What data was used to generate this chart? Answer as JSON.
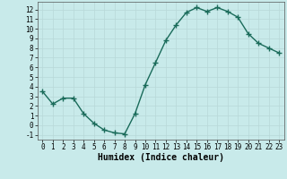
{
  "x": [
    0,
    1,
    2,
    3,
    4,
    5,
    6,
    7,
    8,
    9,
    10,
    11,
    12,
    13,
    14,
    15,
    16,
    17,
    18,
    19,
    20,
    21,
    22,
    23
  ],
  "y": [
    3.5,
    2.2,
    2.8,
    2.8,
    1.2,
    0.2,
    -0.5,
    -0.8,
    -0.9,
    1.2,
    4.2,
    6.5,
    8.8,
    10.4,
    11.7,
    12.2,
    11.8,
    12.2,
    11.8,
    11.2,
    9.5,
    8.5,
    8.0,
    7.5
  ],
  "line_color": "#1a6b5a",
  "marker": "+",
  "marker_size": 4,
  "line_width": 1.0,
  "xlabel": "Humidex (Indice chaleur)",
  "xlabel_fontsize": 7,
  "bg_color": "#c8eaea",
  "grid_color": "#b8d8d8",
  "yticks": [
    -1,
    0,
    1,
    2,
    3,
    4,
    5,
    6,
    7,
    8,
    9,
    10,
    11,
    12
  ],
  "xticks": [
    0,
    1,
    2,
    3,
    4,
    5,
    6,
    7,
    8,
    9,
    10,
    11,
    12,
    13,
    14,
    15,
    16,
    17,
    18,
    19,
    20,
    21,
    22,
    23
  ],
  "xlim": [
    -0.5,
    23.5
  ],
  "ylim": [
    -1.5,
    12.8
  ],
  "tick_fontsize": 5.5
}
